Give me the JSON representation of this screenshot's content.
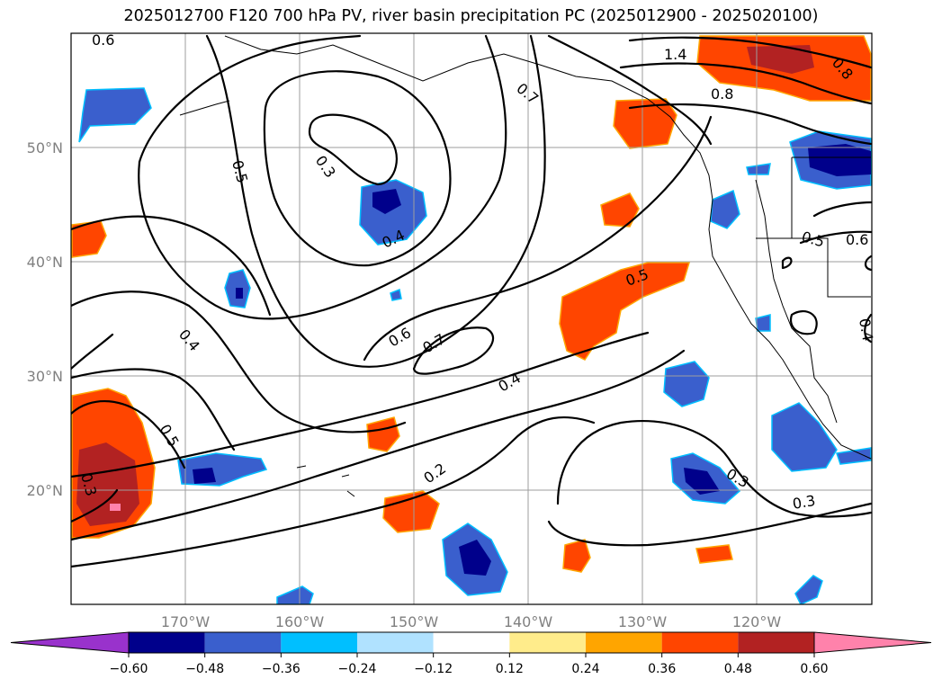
{
  "title": "2025012700 F120 700 hPa PV, river basin precipitation PC (2025012900 - 2025020100)",
  "map": {
    "projection": "cylindrical",
    "lon_range": [
      -180,
      -110
    ],
    "lat_range": [
      10,
      60
    ],
    "lon_ticks": [
      "170°W",
      "160°W",
      "150°W",
      "140°W",
      "130°W",
      "120°W"
    ],
    "lat_ticks": [
      "20°N",
      "30°N",
      "40°N",
      "50°N"
    ],
    "grid": true,
    "contour_field": "700 hPa PV",
    "contour_labels": [
      "0.6",
      "1.4",
      "0.8",
      "0.7",
      "0.8",
      "0.5",
      "0.3",
      "0.4",
      "0.5",
      "0.6",
      "0.4",
      "0.6",
      "0.7",
      "0.5",
      "0.4",
      "0.5",
      "0.3",
      "0.2",
      "0.3",
      "0.3",
      "0.4"
    ],
    "fill_field": "river basin precipitation PC"
  },
  "colorbar": {
    "extend": "both",
    "colors": [
      "#9932cc",
      "#00008b",
      "#3a5fcd",
      "#00bfff",
      "#b0e2ff",
      "#ffffff",
      "#ffec8b",
      "#ffa500",
      "#ff4500",
      "#b22222",
      "#ff82ab"
    ],
    "tick_labels": [
      "−0.60",
      "−0.48",
      "−0.36",
      "−0.24",
      "−0.12",
      "0.12",
      "0.24",
      "0.36",
      "0.48",
      "0.60"
    ]
  }
}
